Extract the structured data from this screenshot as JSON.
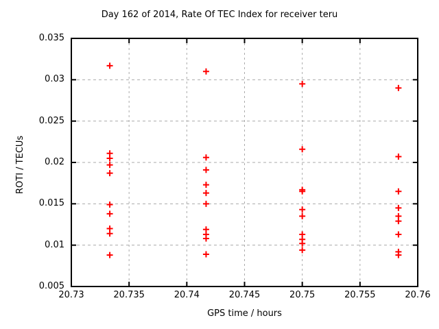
{
  "title": "Day 162 of 2014, Rate Of TEC Index for receiver teru",
  "colors": {
    "marker": "#ff0000",
    "grid": "#aaaaaa",
    "axis": "#000000",
    "background": "#ffffff",
    "text": "#000000"
  },
  "chart_data": {
    "type": "scatter",
    "title": "Day 162 of 2014, Rate Of TEC Index for receiver teru",
    "xlabel": "GPS time / hours",
    "ylabel": "ROTI / TECUs",
    "xlim": [
      20.73,
      20.76
    ],
    "ylim": [
      0.005,
      0.035
    ],
    "xtick_values": [
      20.73,
      20.735,
      20.74,
      20.745,
      20.75,
      20.755,
      20.76
    ],
    "xtick_labels": [
      "20.73",
      "20.735",
      "20.74",
      "20.745",
      "20.75",
      "20.755",
      "20.76"
    ],
    "ytick_values": [
      0.005,
      0.01,
      0.015,
      0.02,
      0.025,
      0.03,
      0.035
    ],
    "ytick_labels": [
      "0.005",
      "0.01",
      "0.015",
      "0.02",
      "0.025",
      "0.03",
      "0.035"
    ],
    "grid": true,
    "legend": "none",
    "marker": "plus",
    "series": [
      {
        "name": "ROTI",
        "color": "#ff0000",
        "points": [
          [
            20.73333,
            0.0317
          ],
          [
            20.73333,
            0.0211
          ],
          [
            20.73333,
            0.0205
          ],
          [
            20.73333,
            0.0197
          ],
          [
            20.73333,
            0.0187
          ],
          [
            20.73333,
            0.0149
          ],
          [
            20.73333,
            0.0138
          ],
          [
            20.73333,
            0.012
          ],
          [
            20.73333,
            0.0114
          ],
          [
            20.73333,
            0.0088
          ],
          [
            20.74167,
            0.031
          ],
          [
            20.74167,
            0.0206
          ],
          [
            20.74167,
            0.0191
          ],
          [
            20.74167,
            0.0173
          ],
          [
            20.74167,
            0.0163
          ],
          [
            20.74167,
            0.015
          ],
          [
            20.74167,
            0.0119
          ],
          [
            20.74167,
            0.0113
          ],
          [
            20.74167,
            0.0108
          ],
          [
            20.74167,
            0.0089
          ],
          [
            20.75,
            0.0295
          ],
          [
            20.75,
            0.0216
          ],
          [
            20.75,
            0.0167
          ],
          [
            20.75,
            0.0165
          ],
          [
            20.75,
            0.0143
          ],
          [
            20.75,
            0.0135
          ],
          [
            20.75,
            0.0113
          ],
          [
            20.75,
            0.0107
          ],
          [
            20.75,
            0.0102
          ],
          [
            20.75,
            0.0094
          ],
          [
            20.75833,
            0.029
          ],
          [
            20.75833,
            0.0207
          ],
          [
            20.75833,
            0.0165
          ],
          [
            20.75833,
            0.0145
          ],
          [
            20.75833,
            0.0135
          ],
          [
            20.75833,
            0.0129
          ],
          [
            20.75833,
            0.0113
          ],
          [
            20.75833,
            0.0092
          ],
          [
            20.75833,
            0.0088
          ]
        ]
      }
    ]
  }
}
